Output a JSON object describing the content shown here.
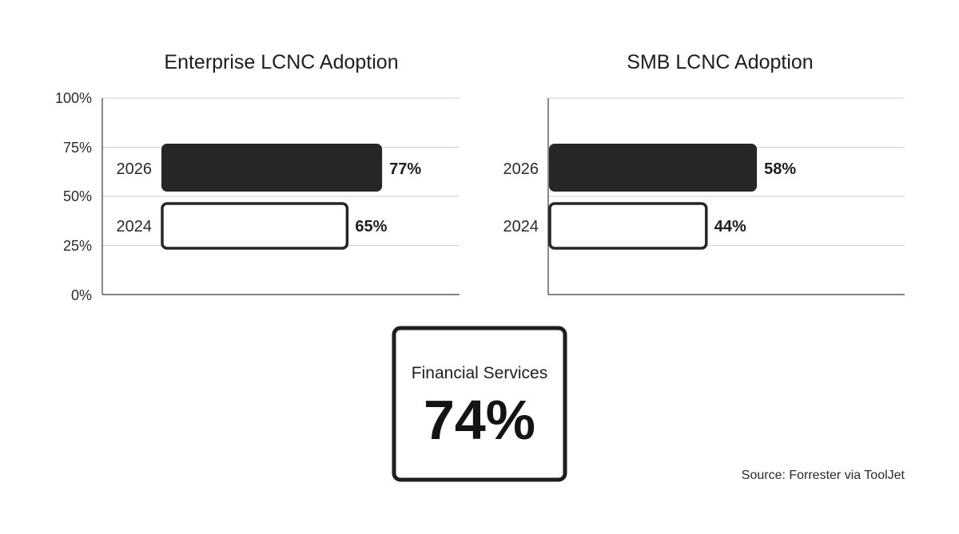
{
  "colors": {
    "filled_bar": "#262626",
    "outline_bar": "#ffffff",
    "bar_stroke": "#262626"
  },
  "chart_data": [
    {
      "type": "bar",
      "orientation": "horizontal",
      "title": "Enterprise LCNC Adoption",
      "categories": [
        "2026",
        "2024"
      ],
      "values": [
        77,
        65
      ],
      "data_labels": [
        "77%",
        "65%"
      ],
      "xlim": [
        0,
        100
      ],
      "ticks": [
        "0%",
        "25%",
        "50%",
        "75%",
        "100%"
      ],
      "grid": true
    },
    {
      "type": "bar",
      "orientation": "horizontal",
      "title": "SMB LCNC Adoption",
      "categories": [
        "2026",
        "2024"
      ],
      "values": [
        58,
        44
      ],
      "data_labels": [
        "58%",
        "44%"
      ],
      "xlim": [
        0,
        100
      ],
      "grid": true
    }
  ],
  "callout": {
    "label": "Financial Services",
    "value": "74%"
  },
  "source": "Source: Forrester via ToolJet"
}
